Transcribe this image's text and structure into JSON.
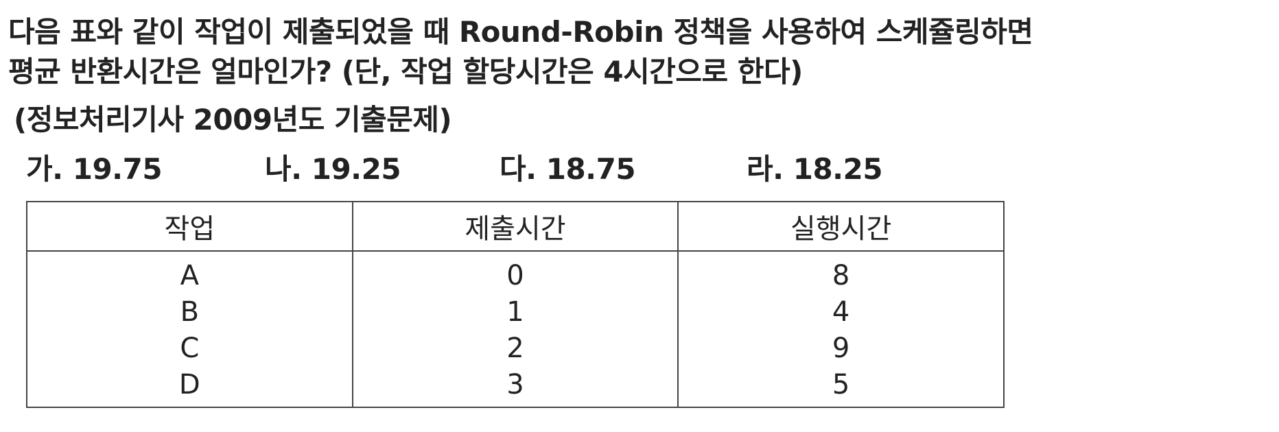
{
  "question": {
    "line1": "다음 표와 같이 작업이 제출되었을 때 Round-Robin 정책을 사용하여 스케쥴링하면",
    "line2": "평균 반환시간은 얼마인가? (단, 작업 할당시간은 4시간으로 한다)"
  },
  "source": "(정보처리기사 2009년도 기출문제)",
  "choices": [
    "가. 19.75",
    "나. 19.25",
    "다. 18.75",
    "라. 18.25"
  ],
  "table": {
    "headers": [
      "작업",
      "제출시간",
      "실행시간"
    ],
    "rows": [
      [
        "A",
        "0",
        "8"
      ],
      [
        "B",
        "1",
        "4"
      ],
      [
        "C",
        "2",
        "9"
      ],
      [
        "D",
        "3",
        "5"
      ]
    ]
  }
}
